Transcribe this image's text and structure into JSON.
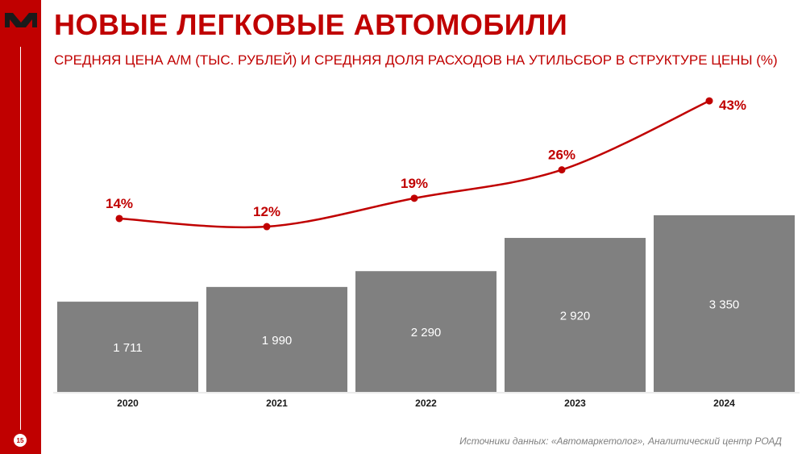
{
  "header": {
    "title": "НОВЫЕ ЛЕГКОВЫЕ АВТОМОБИЛИ",
    "subtitle": "СРЕДНЯЯ ЦЕНА А/М (ТЫС. РУБЛЕЙ) И СРЕДНЯЯ ДОЛЯ РАСХОДОВ НА УТИЛЬСБОР В СТРУКТУРЕ ЦЕНЫ (%)"
  },
  "page_number": "15",
  "source": "Источники данных: «Автомаркетолог», Аналитический центр РОАД",
  "colors": {
    "brand": "#c00000",
    "bar": "#808080",
    "line": "#c00000"
  },
  "chart_data": {
    "type": "bar+line",
    "categories": [
      "2020",
      "2021",
      "2022",
      "2023",
      "2024"
    ],
    "series": [
      {
        "type": "bar",
        "values": [
          1711,
          1990,
          2290,
          2920,
          3350
        ],
        "labels": [
          "1 711",
          "1 990",
          "2 290",
          "2 920",
          "3 350"
        ]
      },
      {
        "type": "line",
        "values": [
          14,
          12,
          19,
          26,
          43
        ],
        "labels": [
          "14%",
          "12%",
          "19%",
          "26%",
          "43%"
        ]
      }
    ],
    "grid": false,
    "legend": "none"
  }
}
